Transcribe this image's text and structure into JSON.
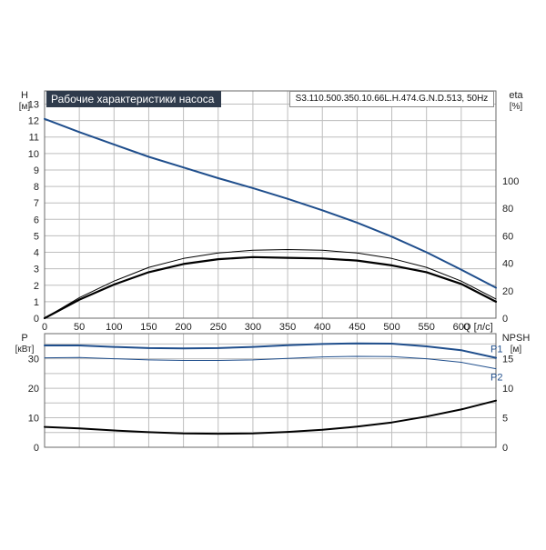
{
  "header": {
    "title": "Рабочие характеристики насоса",
    "model": "S3.110.500.350.10.66L.H.474.G.N.D.513, 50Hz"
  },
  "colors": {
    "blue": "#1f4e8c",
    "black": "#000000",
    "grid": "#bdbdbd",
    "title_bg": "#2f3b4c"
  },
  "chart_data": [
    {
      "type": "line",
      "panel": "head-efficiency",
      "xlabel": "Q [л/с]",
      "x_ticks": [
        0,
        50,
        100,
        150,
        200,
        250,
        300,
        350,
        400,
        450,
        500,
        550,
        600
      ],
      "xlim": [
        0,
        650
      ],
      "y_left": {
        "label_top": "H",
        "label_unit": "[м]",
        "ticks": [
          0,
          1,
          2,
          3,
          4,
          5,
          6,
          7,
          8,
          9,
          10,
          11,
          12,
          13
        ],
        "lim": [
          0,
          13.8
        ]
      },
      "y_right": {
        "label_top": "eta",
        "label_unit": "[%]",
        "ticks": [
          0,
          20,
          40,
          60,
          80,
          100
        ],
        "lim": [
          0,
          165.6
        ]
      },
      "series": [
        {
          "axis": "left",
          "color": "#1f4e8c",
          "width": 2,
          "x": [
            0,
            50,
            100,
            150,
            200,
            250,
            300,
            350,
            400,
            450,
            500,
            550,
            600,
            650
          ],
          "y": [
            12.1,
            11.3,
            10.55,
            9.8,
            9.15,
            8.5,
            7.9,
            7.25,
            6.55,
            5.8,
            4.95,
            4.0,
            2.95,
            1.85
          ]
        },
        {
          "axis": "right",
          "color": "#000000",
          "width": 1,
          "x": [
            0,
            50,
            100,
            150,
            200,
            250,
            300,
            350,
            400,
            450,
            500,
            550,
            600,
            650
          ],
          "y": [
            0,
            15,
            27,
            37,
            43.5,
            47.5,
            49.5,
            50,
            49.5,
            47.5,
            43.5,
            37,
            27,
            14
          ]
        },
        {
          "axis": "right",
          "color": "#000000",
          "width": 2.2,
          "x": [
            0,
            50,
            100,
            150,
            200,
            250,
            300,
            350,
            400,
            450,
            500,
            550,
            600,
            650
          ],
          "y": [
            0,
            13.5,
            24.5,
            33.5,
            39.5,
            43,
            44.5,
            44,
            43.5,
            42,
            38.5,
            33.5,
            25,
            12
          ]
        }
      ]
    },
    {
      "type": "line",
      "panel": "power-npsh",
      "xlim": [
        0,
        650
      ],
      "y_left": {
        "label_top": "P",
        "label_unit": "[кВт]",
        "ticks": [
          0,
          10,
          20,
          30
        ],
        "lim": [
          0,
          38.5
        ]
      },
      "y_right": {
        "label_top": "NPSH",
        "label_unit": "[м]",
        "ticks": [
          0,
          5,
          10,
          15
        ],
        "lim": [
          0,
          19.25
        ]
      },
      "series": [
        {
          "name": "P1",
          "axis": "left",
          "color": "#1f4e8c",
          "width": 2,
          "x": [
            0,
            50,
            100,
            150,
            200,
            250,
            300,
            350,
            400,
            450,
            500,
            550,
            600,
            650
          ],
          "y": [
            34.5,
            34.5,
            34.0,
            33.6,
            33.5,
            33.6,
            34.0,
            34.6,
            35.0,
            35.2,
            35.1,
            34.2,
            32.9,
            30.3
          ]
        },
        {
          "name": "P2",
          "axis": "left",
          "color": "#1f4e8c",
          "width": 1,
          "x": [
            0,
            50,
            100,
            150,
            200,
            250,
            300,
            350,
            400,
            450,
            500,
            550,
            600,
            650
          ],
          "y": [
            30.3,
            30.4,
            30.0,
            29.6,
            29.4,
            29.4,
            29.6,
            30.1,
            30.6,
            30.8,
            30.7,
            30.0,
            28.8,
            26.6
          ]
        },
        {
          "axis": "right",
          "color": "#000000",
          "width": 2,
          "x": [
            0,
            50,
            100,
            150,
            200,
            250,
            300,
            350,
            400,
            450,
            500,
            550,
            600,
            650
          ],
          "y": [
            3.45,
            3.2,
            2.85,
            2.55,
            2.35,
            2.3,
            2.35,
            2.6,
            2.95,
            3.5,
            4.2,
            5.2,
            6.4,
            7.9
          ]
        }
      ]
    }
  ]
}
